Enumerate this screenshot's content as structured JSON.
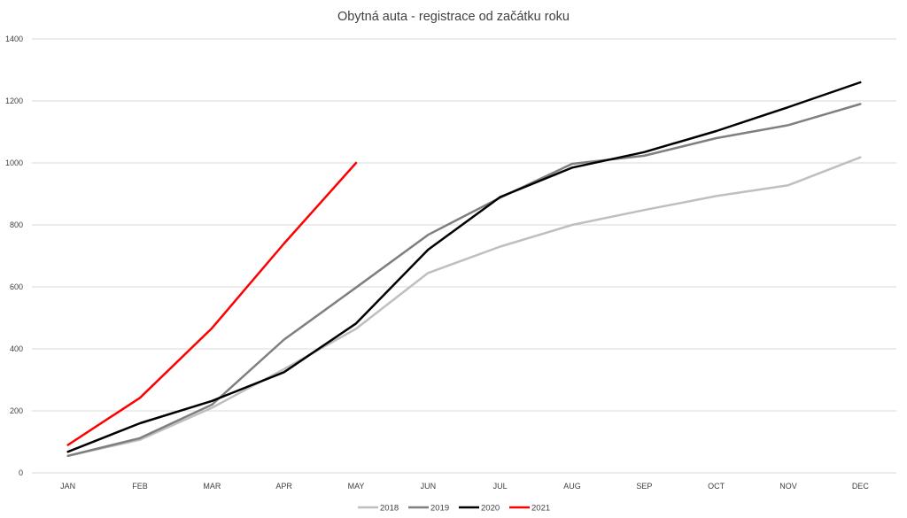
{
  "chart_data": {
    "type": "line",
    "title": "Obytná auta - registrace od začátku roku",
    "xlabel": "",
    "ylabel": "",
    "categories": [
      "JAN",
      "FEB",
      "MAR",
      "APR",
      "MAY",
      "JUN",
      "JUL",
      "AUG",
      "SEP",
      "OCT",
      "NOV",
      "DEC"
    ],
    "ylim": [
      0,
      1400
    ],
    "yticks": [
      0,
      200,
      400,
      600,
      800,
      1000,
      1200,
      1400
    ],
    "grid": true,
    "legend_position": "bottom",
    "series": [
      {
        "name": "2018",
        "color": "#bfbfbf",
        "values": [
          55,
          107,
          210,
          335,
          465,
          645,
          730,
          800,
          848,
          893,
          928,
          1018
        ]
      },
      {
        "name": "2019",
        "color": "#7f7f7f",
        "values": [
          55,
          112,
          220,
          430,
          598,
          768,
          888,
          997,
          1023,
          1080,
          1122,
          1190
        ]
      },
      {
        "name": "2020",
        "color": "#000000",
        "values": [
          68,
          160,
          232,
          325,
          482,
          720,
          890,
          985,
          1035,
          1103,
          1180,
          1260
        ]
      },
      {
        "name": "2021",
        "color": "#ff0000",
        "values": [
          90,
          242,
          467,
          740,
          1000,
          null,
          null,
          null,
          null,
          null,
          null,
          null
        ]
      }
    ]
  }
}
